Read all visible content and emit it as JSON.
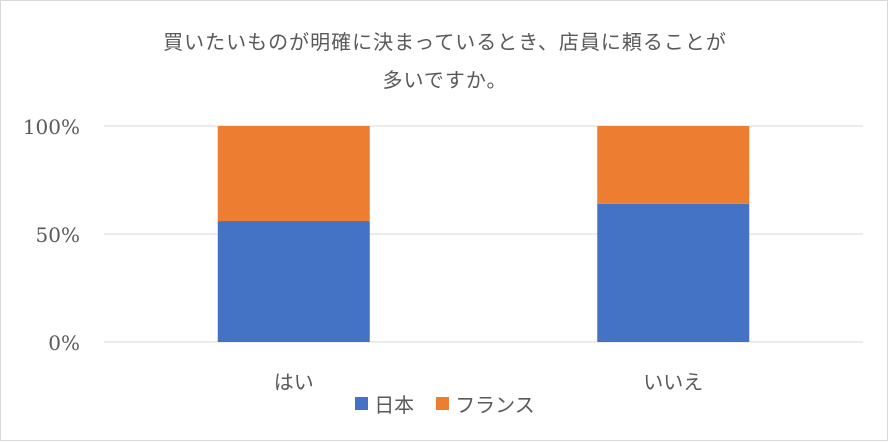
{
  "chart_data": {
    "type": "bar",
    "stacked": true,
    "percent_stacked": true,
    "title_lines": [
      "買いたいものが明確に決まっているとき、店員に頼ることが",
      "多いですか。"
    ],
    "categories": [
      "はい",
      "いいえ"
    ],
    "series": [
      {
        "name": "日本",
        "color": "#4472c4",
        "values": [
          56,
          64
        ]
      },
      {
        "name": "フランス",
        "color": "#ed7d31",
        "values": [
          44,
          36
        ]
      }
    ],
    "ylim": [
      0,
      100
    ],
    "yticks": [
      0,
      50,
      100
    ],
    "ytick_labels": [
      "0%",
      "50%",
      "100%"
    ],
    "grid": true,
    "legend_position": "bottom",
    "colors": {
      "gridline": "#d9d9d9",
      "text": "#595959"
    }
  }
}
